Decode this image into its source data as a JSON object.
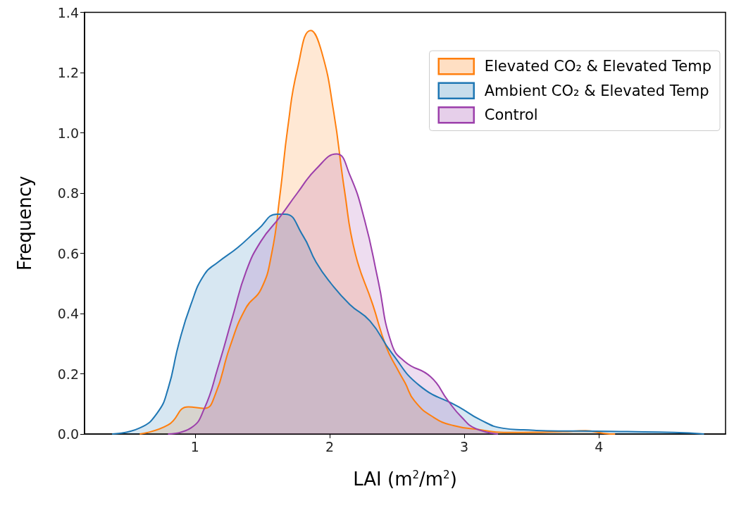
{
  "chart_data": {
    "type": "area",
    "xlabel": "LAI (m$^{2}$/m$^{2}$)",
    "ylabel": "Frequency",
    "xlim": [
      0.18,
      4.94
    ],
    "xticks": [
      1,
      2,
      3,
      4
    ],
    "ylim": [
      0,
      1.4
    ],
    "yticks": [
      {
        "value": 0,
        "label": "0.0"
      },
      0.2,
      0.4,
      0.6,
      0.8,
      {
        "value": 1,
        "label": "1.0"
      },
      1.2,
      1.4
    ],
    "grid": false,
    "legend": "top right",
    "line_style": "solid",
    "marker": "none",
    "series": [
      {
        "name": "Elevated CO₂ & Elevated Temp",
        "color": "#ff7f0e",
        "x": [
          0.59,
          0.8,
          0.95,
          1.07,
          1.15,
          1.26,
          1.38,
          1.49,
          1.57,
          1.63,
          1.69,
          1.76,
          1.86,
          1.94,
          2.03,
          2.11,
          2.19,
          2.32,
          2.42,
          2.51,
          2.56,
          2.63,
          2.77,
          2.92,
          3.12,
          3.29,
          3.73,
          3.9,
          4.04,
          4.12
        ],
        "values": [
          0,
          0.03,
          0.09,
          0.085,
          0.13,
          0.29,
          0.42,
          0.48,
          0.6,
          0.79,
          1.02,
          1.21,
          1.34,
          1.27,
          1.07,
          0.81,
          0.6,
          0.43,
          0.29,
          0.21,
          0.17,
          0.11,
          0.056,
          0.028,
          0.014,
          0.005,
          0.008,
          0.011,
          0.002,
          0
        ]
      },
      {
        "name": "Ambient CO₂ & Elevated Temp",
        "color": "#1f77b4",
        "x": [
          0.385,
          0.59,
          0.72,
          0.8,
          0.88,
          0.97,
          1.07,
          1.17,
          1.32,
          1.47,
          1.61,
          1.67,
          1.8,
          1.9,
          2.01,
          2.15,
          2.3,
          2.46,
          2.67,
          2.96,
          3.12,
          3.29,
          3.44,
          3.7,
          3.87,
          4.21,
          4.56,
          4.78
        ],
        "values": [
          0,
          0.02,
          0.07,
          0.15,
          0.3,
          0.43,
          0.53,
          0.57,
          0.62,
          0.68,
          0.73,
          0.73,
          0.66,
          0.57,
          0.5,
          0.43,
          0.375,
          0.27,
          0.16,
          0.09,
          0.047,
          0.019,
          0.014,
          0.01,
          0.01,
          0.008,
          0.005,
          0
        ]
      },
      {
        "name": "Control",
        "color": "#9c3fab",
        "x": [
          0.8,
          0.97,
          1.07,
          1.17,
          1.28,
          1.38,
          1.49,
          1.63,
          1.76,
          1.9,
          2.05,
          2.15,
          2.26,
          2.36,
          2.46,
          2.56,
          2.75,
          2.88,
          2.98,
          3.08,
          3.25
        ],
        "values": [
          0,
          0.02,
          0.085,
          0.22,
          0.39,
          0.54,
          0.64,
          0.72,
          0.8,
          0.88,
          0.93,
          0.86,
          0.71,
          0.51,
          0.3,
          0.24,
          0.19,
          0.11,
          0.056,
          0.019,
          0
        ]
      }
    ]
  }
}
